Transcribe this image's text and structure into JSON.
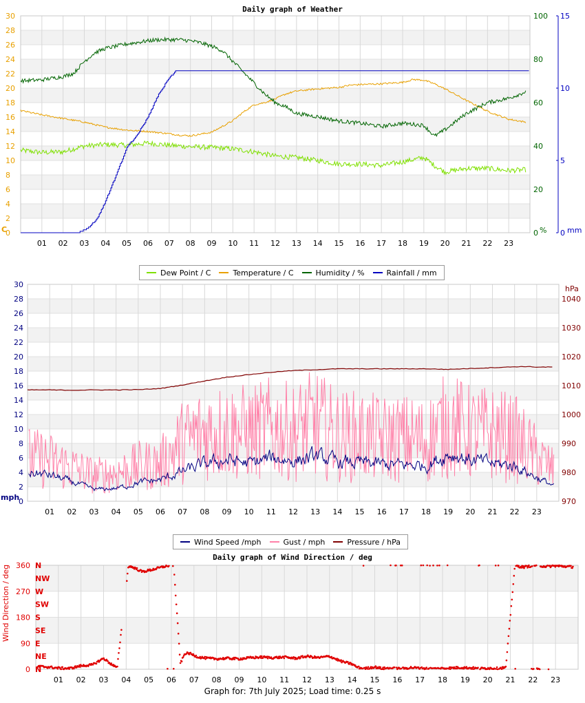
{
  "footer": {
    "text": "Graph for: 7th July 2025; Load time: 0.25 s"
  },
  "chart_data": [
    {
      "type": "line",
      "title": "Daily graph of Weather",
      "x_ticks": [
        "01",
        "02",
        "03",
        "04",
        "05",
        "06",
        "07",
        "08",
        "09",
        "10",
        "11",
        "12",
        "13",
        "14",
        "15",
        "16",
        "17",
        "18",
        "19",
        "20",
        "21",
        "22",
        "23"
      ],
      "xlim": [
        0,
        24
      ],
      "axes": {
        "left": {
          "unit": "C",
          "ticks": [
            "0",
            "2",
            "4",
            "6",
            "8",
            "10",
            "12",
            "14",
            "16",
            "18",
            "20",
            "22",
            "24",
            "26",
            "28",
            "30"
          ],
          "range": [
            0,
            30
          ],
          "color": "#e8a000"
        },
        "right1": {
          "unit": "%",
          "ticks": [
            "0",
            "20",
            "40",
            "60",
            "80",
            "100"
          ],
          "range": [
            0,
            100
          ],
          "color": "#006400"
        },
        "right2": {
          "unit": "mm",
          "ticks": [
            "0",
            "5",
            "10",
            "15"
          ],
          "range": [
            0,
            15
          ],
          "color": "#0000c0"
        }
      },
      "legend": [
        "Dew Point / C",
        "Temperature / C",
        "Humidity / %",
        "Rainfall / mm"
      ],
      "series": [
        {
          "name": "Dew Point / C",
          "axis": "left",
          "color": "#7fe000",
          "x": [
            0,
            1,
            2,
            3,
            4,
            5,
            6,
            7,
            8,
            9,
            10,
            11,
            12,
            13,
            14,
            15,
            16,
            17,
            18,
            19,
            19.5,
            20,
            21,
            22,
            23,
            23.8
          ],
          "y": [
            11.4,
            11.1,
            11.2,
            12.0,
            12.2,
            12.1,
            12.4,
            12.1,
            11.9,
            11.8,
            11.6,
            11.2,
            10.6,
            10.4,
            10.0,
            9.5,
            9.5,
            9.3,
            9.8,
            10.4,
            9.3,
            8.4,
            8.9,
            8.9,
            8.6,
            8.7
          ]
        },
        {
          "name": "Temperature / C",
          "axis": "left",
          "color": "#e8a000",
          "x": [
            0,
            1,
            2,
            3,
            4,
            5,
            6,
            7,
            7.5,
            8,
            9,
            10,
            10.5,
            11,
            11.5,
            12,
            12.5,
            13,
            14,
            15,
            15.5,
            16,
            17,
            18,
            18.5,
            19,
            19.5,
            20,
            21,
            22,
            23,
            23.8
          ],
          "y": [
            16.9,
            16.3,
            15.8,
            15.3,
            14.6,
            14.2,
            14.0,
            13.7,
            13.5,
            13.4,
            13.9,
            15.5,
            16.7,
            17.7,
            18.0,
            18.5,
            19.2,
            19.6,
            19.9,
            20.1,
            20.4,
            20.5,
            20.6,
            20.8,
            21.2,
            21.1,
            20.6,
            19.9,
            18.3,
            16.8,
            15.7,
            15.3
          ]
        },
        {
          "name": "Humidity / %",
          "axis": "right1",
          "color": "#006400",
          "x": [
            0,
            1,
            2,
            2.5,
            3,
            3.5,
            4,
            5,
            6,
            6.5,
            7,
            7.5,
            8,
            8.5,
            9,
            9.5,
            10,
            10.5,
            11,
            11.5,
            12,
            12.5,
            13,
            14,
            15,
            16,
            17,
            18,
            19,
            19.5,
            20,
            21,
            22,
            23,
            23.8
          ],
          "y": [
            70,
            70.5,
            72,
            73.5,
            79,
            83,
            85,
            87,
            88.5,
            89,
            89,
            89,
            88.5,
            87.5,
            86,
            84,
            79,
            74,
            69,
            64,
            60,
            58,
            55,
            53.5,
            51.5,
            50.5,
            49,
            50.5,
            49.5,
            44.5,
            47.5,
            55,
            60,
            62,
            65
          ]
        },
        {
          "name": "Rainfall / mm",
          "axis": "right2",
          "color": "#0000c0",
          "x": [
            0,
            2.7,
            3,
            3.3,
            3.6,
            4,
            4.5,
            5,
            5.5,
            6,
            6.5,
            7,
            7.3,
            7.6,
            24
          ],
          "y": [
            0,
            0,
            0.2,
            0.5,
            1.0,
            2.2,
            4.0,
            5.9,
            6.8,
            8.0,
            9.6,
            10.7,
            11.2,
            11.2,
            11.2
          ]
        }
      ]
    },
    {
      "type": "line",
      "title": "",
      "x_ticks": [
        "01",
        "02",
        "03",
        "04",
        "05",
        "06",
        "07",
        "08",
        "09",
        "10",
        "11",
        "12",
        "13",
        "14",
        "15",
        "16",
        "17",
        "18",
        "19",
        "20",
        "21",
        "22",
        "23"
      ],
      "xlim": [
        0,
        24
      ],
      "axes": {
        "left": {
          "unit": "mph",
          "ticks": [
            "0",
            "2",
            "4",
            "6",
            "8",
            "10",
            "12",
            "14",
            "16",
            "18",
            "20",
            "22",
            "24",
            "26",
            "28",
            "30"
          ],
          "range": [
            0,
            30
          ],
          "color": "#000080"
        },
        "right": {
          "unit": "hPa",
          "ticks": [
            "970",
            "980",
            "990",
            "1000",
            "1010",
            "1020",
            "1030",
            "1040"
          ],
          "range": [
            970,
            1045
          ],
          "color": "#800000"
        }
      },
      "legend": [
        "Wind Speed /mph",
        "Gust / mph",
        "Pressure / hPa"
      ],
      "series": [
        {
          "name": "Wind Speed /mph",
          "axis": "left",
          "color": "#000080",
          "x": [
            0,
            1,
            2,
            3,
            4,
            5,
            6,
            7,
            8,
            9,
            10,
            11,
            12,
            13,
            14,
            15,
            16,
            17,
            18,
            19,
            20,
            21,
            22,
            23,
            23.8
          ],
          "y": [
            4.0,
            3.6,
            2.6,
            1.6,
            1.8,
            2.6,
            3.0,
            4.2,
            5.2,
            5.7,
            5.2,
            6.0,
            5.6,
            6.2,
            5.4,
            5.3,
            5.1,
            5.0,
            5.0,
            6.6,
            5.7,
            5.2,
            4.9,
            3.2,
            2.0
          ]
        },
        {
          "name": "Gust / mph",
          "axis": "left",
          "color": "#ff80a8",
          "x": [
            0,
            1,
            2,
            3,
            4,
            5,
            6,
            7,
            8,
            9,
            10,
            11,
            12,
            13,
            14,
            15,
            16,
            17,
            18,
            19,
            20,
            21,
            22,
            23,
            23.8
          ],
          "y": [
            6.5,
            6.0,
            5.0,
            3.8,
            4.2,
            5.2,
            5.5,
            8.8,
            10.2,
            10.4,
            10.1,
            10.8,
            10.2,
            11.5,
            9.7,
            9.6,
            9.2,
            9.3,
            9.0,
            11.4,
            10.1,
            10.0,
            9.3,
            6.6,
            4.5
          ]
        },
        {
          "name": "Pressure / hPa",
          "axis": "right",
          "color": "#800000",
          "x": [
            0,
            1,
            2,
            3,
            4,
            5,
            6,
            7,
            8,
            9,
            10,
            11,
            12,
            13,
            14,
            15,
            16,
            17,
            18,
            19,
            20,
            21,
            22,
            22.5,
            23,
            23.8
          ],
          "y": [
            1008.5,
            1008.5,
            1008.4,
            1008.5,
            1008.5,
            1008.6,
            1009.0,
            1010.2,
            1011.6,
            1012.9,
            1013.8,
            1014.6,
            1015.2,
            1015.5,
            1015.8,
            1015.8,
            1015.8,
            1015.8,
            1015.8,
            1015.6,
            1015.9,
            1016.2,
            1016.5,
            1016.6,
            1016.4,
            1016.4
          ]
        }
      ]
    },
    {
      "type": "scatter",
      "title": "Daily graph of Wind Direction / deg",
      "ylabel": "Wind Direction / deg",
      "x_ticks": [
        "01",
        "02",
        "03",
        "04",
        "05",
        "06",
        "07",
        "08",
        "09",
        "10",
        "11",
        "12",
        "13",
        "14",
        "15",
        "16",
        "17",
        "18",
        "19",
        "20",
        "21",
        "22",
        "23"
      ],
      "xlim": [
        0,
        24
      ],
      "ylim": [
        0,
        360
      ],
      "y_ticks": [
        "0",
        "90",
        "180",
        "270",
        "360"
      ],
      "compass_labels": [
        "N",
        "NE",
        "E",
        "SE",
        "S",
        "SW",
        "W",
        "NW",
        "N"
      ],
      "series": [
        {
          "name": "",
          "color": "#e00000",
          "x": [
            0.1,
            0.5,
            1.0,
            1.5,
            2.0,
            2.5,
            3.0,
            3.3,
            3.6,
            4.1,
            4.4,
            4.7,
            5.0,
            5.4,
            5.8,
            6.1,
            6.4,
            6.6,
            6.8,
            7.2,
            7.6,
            8.0,
            8.5,
            9.0,
            9.5,
            10.0,
            10.5,
            11.0,
            11.5,
            12.0,
            12.5,
            13.0,
            13.5,
            14.0,
            14.2,
            14.5,
            15.0,
            15.3,
            15.6,
            16.2,
            16.6,
            17.2,
            17.6,
            18.3,
            18.8,
            19.4,
            19.6,
            20.0,
            20.4,
            20.8,
            21.2,
            21.6,
            22.1,
            22.6,
            23.0,
            23.5,
            23.8
          ],
          "y": [
            10,
            8,
            4,
            3,
            12,
            15,
            38,
            20,
            4,
            358,
            350,
            338,
            342,
            350,
            358,
            360,
            20,
            55,
            55,
            42,
            38,
            36,
            38,
            36,
            40,
            42,
            40,
            42,
            38,
            45,
            40,
            45,
            28,
            18,
            8,
            2,
            8,
            3,
            4,
            2,
            6,
            3,
            2,
            4,
            6,
            4,
            2,
            4,
            3,
            6,
            358,
            354,
            360,
            356,
            358,
            356,
            354
          ]
        }
      ]
    }
  ]
}
